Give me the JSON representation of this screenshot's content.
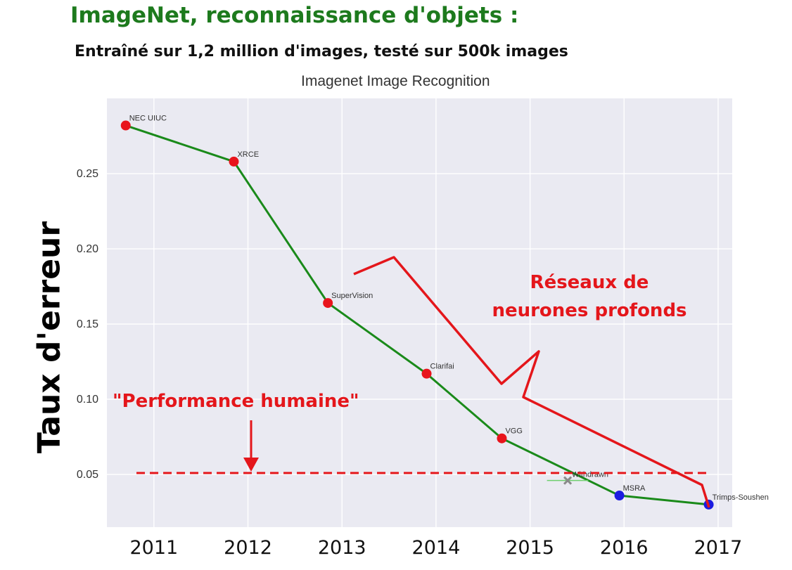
{
  "slide": {
    "title": "ImageNet, reconnaissance d'objets :",
    "subtitle": "Entraîné sur 1,2 million d'images, testé sur 500k images"
  },
  "annotations": {
    "human_performance": "\"Performance humaine\"",
    "deep_networks_line1": "Réseaux de",
    "deep_networks_line2": "neurones profonds"
  },
  "colors": {
    "title_green": "#1d7a1d",
    "line_green": "#1a8a1a",
    "annotation_red": "#e4161b",
    "point_red": "#e8141c",
    "point_blue": "#1c1ce0",
    "plot_background": "#eaeaf2"
  },
  "chart_data": {
    "type": "line",
    "title": "Imagenet Image Recognition",
    "ylabel": "Taux d'erreur",
    "xlabel": "",
    "xlim": [
      2010.5,
      2017.15
    ],
    "ylim": [
      0.015,
      0.3
    ],
    "yticks": [
      "0.05",
      "0.10",
      "0.15",
      "0.20",
      "0.25"
    ],
    "ytick_values": [
      0.05,
      0.1,
      0.15,
      0.2,
      0.25
    ],
    "xticks": [
      "2011",
      "2012",
      "2013",
      "2014",
      "2015",
      "2016",
      "2017"
    ],
    "xtick_values": [
      2011,
      2012,
      2013,
      2014,
      2015,
      2016,
      2017
    ],
    "grid": true,
    "series": [
      {
        "points": [
          {
            "x": 2010.7,
            "y": 0.282,
            "label": "NEC UIUC",
            "color": "red"
          },
          {
            "x": 2011.85,
            "y": 0.258,
            "label": "XRCE",
            "color": "red"
          },
          {
            "x": 2012.85,
            "y": 0.164,
            "label": "SuperVision",
            "color": "red"
          },
          {
            "x": 2013.9,
            "y": 0.117,
            "label": "Clarifai",
            "color": "red"
          },
          {
            "x": 2014.7,
            "y": 0.074,
            "label": "VGG",
            "color": "red"
          },
          {
            "x": 2015.95,
            "y": 0.036,
            "label": "MSRA",
            "color": "blue"
          },
          {
            "x": 2016.9,
            "y": 0.03,
            "label": "Trimps-Soushen",
            "color": "blue"
          }
        ]
      }
    ],
    "withdrawn": {
      "x": 2015.4,
      "y": 0.046,
      "label": "Withdrawn",
      "xerr": 0.22
    },
    "human_performance": 0.051
  }
}
